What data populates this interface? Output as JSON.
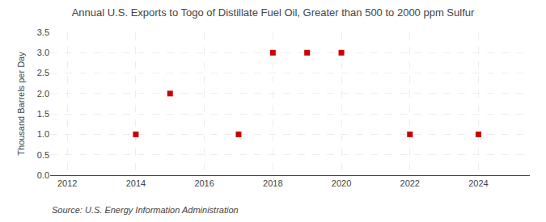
{
  "chart_data": {
    "type": "scatter",
    "title": "Annual U.S. Exports to Togo of Distillate Fuel Oil, Greater than 500 to 2000 ppm Sulfur",
    "ylabel": "Thousand Barrels per Day",
    "annotations": [
      "Source: U.S. Energy Information Administration"
    ],
    "x": [
      2014,
      2015,
      2017,
      2018,
      2019,
      2020,
      2022,
      2024
    ],
    "values": [
      1.0,
      2.0,
      1.0,
      3.0,
      3.0,
      3.0,
      1.0,
      1.0
    ],
    "color": "#cc0000",
    "marker": "square",
    "xlim": [
      2011.5,
      2025.5
    ],
    "ylim": [
      0.0,
      3.5
    ],
    "xticks": [
      2012,
      2014,
      2016,
      2018,
      2020,
      2022,
      2024
    ],
    "yticks": [
      {
        "value": 0.0,
        "label": "0.0"
      },
      0.5,
      {
        "value": 1.0,
        "label": "1.0"
      },
      1.5,
      {
        "value": 2.0,
        "label": "2.0"
      },
      2.5,
      {
        "value": 3.0,
        "label": "3.0"
      },
      3.5
    ],
    "grid": true
  }
}
